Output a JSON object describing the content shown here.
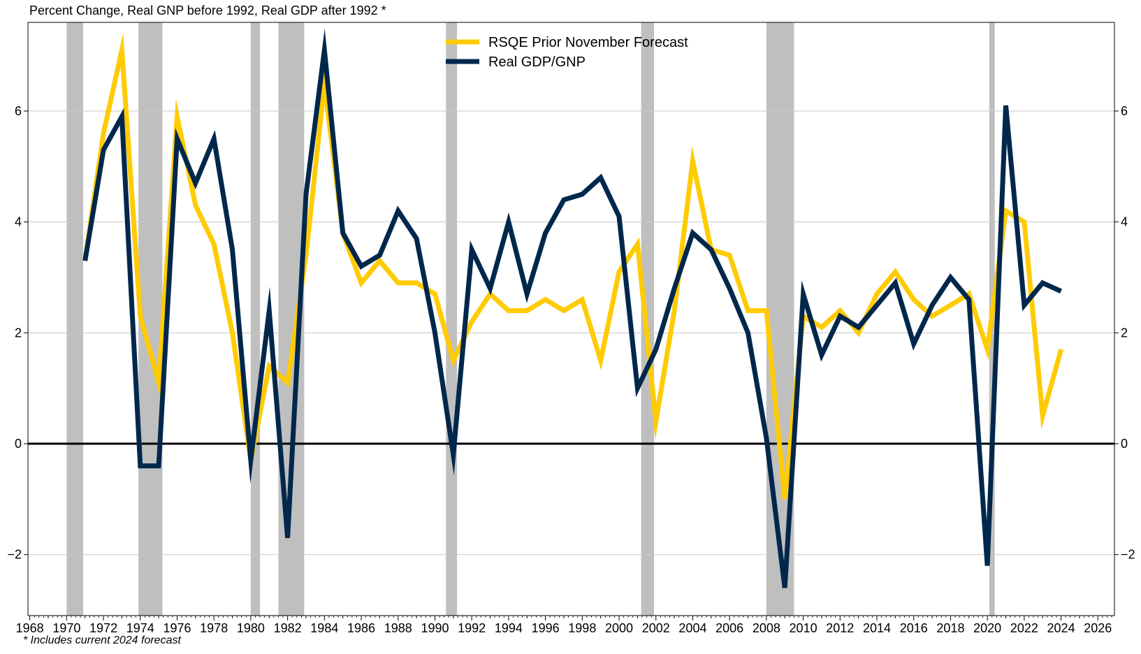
{
  "chart_data": {
    "type": "line",
    "title": "Percent Change, Real GNP before 1992, Real GDP after 1992 *",
    "note": "* Includes current 2024 forecast",
    "xlabel": "",
    "ylabel": "",
    "xlim": [
      1967.9,
      2026.9
    ],
    "ylim": [
      -3.1,
      7.6
    ],
    "x_ticks": [
      1968,
      1970,
      1972,
      1974,
      1976,
      1978,
      1980,
      1982,
      1984,
      1986,
      1988,
      1990,
      1992,
      1994,
      1996,
      1998,
      2000,
      2002,
      2004,
      2006,
      2008,
      2010,
      2012,
      2014,
      2016,
      2018,
      2020,
      2022,
      2024,
      2026
    ],
    "y_ticks": [
      -2,
      0,
      2,
      4,
      6
    ],
    "y_tick_labels": [
      "−2",
      "0",
      "2",
      "4",
      "6"
    ],
    "grid": true,
    "legend_position": "top-center",
    "recessions": [
      {
        "start": 1970.0,
        "end": 1970.9
      },
      {
        "start": 1973.9,
        "end": 1975.2
      },
      {
        "start": 1980.0,
        "end": 1980.5
      },
      {
        "start": 1981.5,
        "end": 1982.9
      },
      {
        "start": 1990.6,
        "end": 1991.2
      },
      {
        "start": 2001.2,
        "end": 2001.9
      },
      {
        "start": 2008.0,
        "end": 2009.5
      },
      {
        "start": 2020.1,
        "end": 2020.4
      }
    ],
    "series": [
      {
        "name": "RSQE Prior November Forecast",
        "color": "#FFCB05",
        "x": [
          1971,
          1972,
          1973,
          1974,
          1975,
          1976,
          1977,
          1978,
          1979,
          1980,
          1981,
          1982,
          1983,
          1984,
          1985,
          1986,
          1987,
          1988,
          1989,
          1990,
          1991,
          1992,
          1993,
          1994,
          1995,
          1996,
          1997,
          1998,
          1999,
          2000,
          2001,
          2002,
          2003,
          2004,
          2005,
          2006,
          2007,
          2008,
          2009,
          2010,
          2011,
          2012,
          2013,
          2014,
          2015,
          2016,
          2017,
          2018,
          2019,
          2020,
          2021,
          2022,
          2023,
          2024
        ],
        "values": [
          3.3,
          5.6,
          7.1,
          2.3,
          1.1,
          5.9,
          4.3,
          3.6,
          2.0,
          -0.3,
          1.4,
          1.1,
          3.4,
          6.5,
          3.8,
          2.9,
          3.3,
          2.9,
          2.9,
          2.7,
          1.5,
          2.2,
          2.7,
          2.4,
          2.4,
          2.6,
          2.4,
          2.6,
          1.5,
          3.1,
          3.6,
          0.4,
          2.4,
          5.1,
          3.5,
          3.4,
          2.4,
          2.4,
          -1.0,
          2.3,
          2.1,
          2.4,
          2.0,
          2.7,
          3.1,
          2.6,
          2.3,
          2.5,
          2.7,
          1.7,
          4.2,
          4.0,
          0.5,
          1.7
        ]
      },
      {
        "name": "Real GDP/GNP",
        "color": "#00274C",
        "x": [
          1971,
          1972,
          1973,
          1974,
          1975,
          1976,
          1977,
          1978,
          1979,
          1980,
          1981,
          1982,
          1983,
          1984,
          1985,
          1986,
          1987,
          1988,
          1989,
          1990,
          1991,
          1992,
          1993,
          1994,
          1995,
          1996,
          1997,
          1998,
          1999,
          2000,
          2001,
          2002,
          2003,
          2004,
          2005,
          2006,
          2007,
          2008,
          2009,
          2010,
          2011,
          2012,
          2013,
          2014,
          2015,
          2016,
          2017,
          2018,
          2019,
          2020,
          2021,
          2022,
          2023,
          2024
        ],
        "values": [
          3.3,
          5.3,
          5.9,
          -0.4,
          -0.4,
          5.5,
          4.7,
          5.5,
          3.5,
          -0.3,
          2.4,
          -1.7,
          4.5,
          7.1,
          3.8,
          3.2,
          3.4,
          4.2,
          3.7,
          2.0,
          -0.2,
          3.5,
          2.8,
          4.0,
          2.7,
          3.8,
          4.4,
          4.5,
          4.8,
          4.1,
          1.0,
          1.7,
          2.8,
          3.8,
          3.5,
          2.8,
          2.0,
          0.1,
          -2.6,
          2.7,
          1.6,
          2.3,
          2.1,
          2.5,
          2.9,
          1.8,
          2.5,
          3.0,
          2.6,
          -2.2,
          6.1,
          2.5,
          2.9,
          2.75
        ]
      }
    ]
  }
}
